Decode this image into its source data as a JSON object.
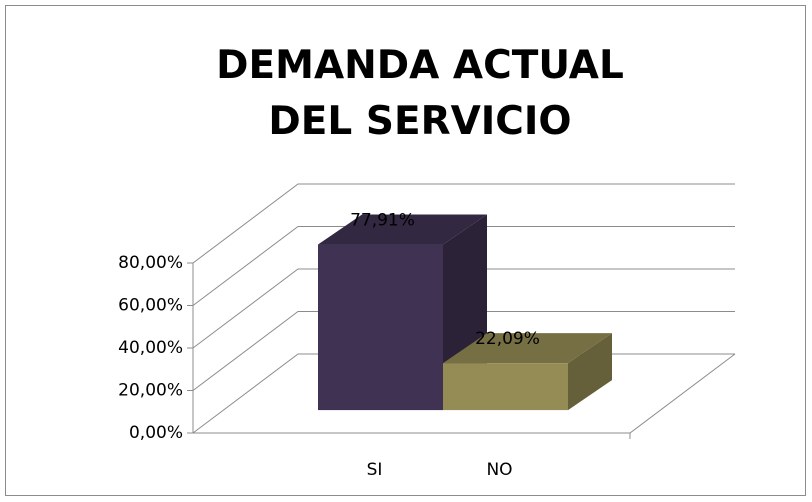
{
  "chart_data": {
    "type": "bar3d",
    "title": "DEMANDA ACTUAL DEL SERVICIO",
    "categories": [
      "SI",
      "NO"
    ],
    "values": [
      77.91,
      22.09
    ],
    "value_labels": [
      "77,91%",
      "22,09%"
    ],
    "colors": [
      "#3f3252",
      "#958b55"
    ],
    "ylim": [
      0,
      80
    ],
    "yticks": [
      {
        "value": 0,
        "label": "0,00%"
      },
      {
        "value": 20,
        "label": "20,00%"
      },
      {
        "value": 40,
        "label": "40,00%"
      },
      {
        "value": 60,
        "label": "60,00%"
      },
      {
        "value": 80,
        "label": "80,00%"
      }
    ],
    "grid": true
  }
}
